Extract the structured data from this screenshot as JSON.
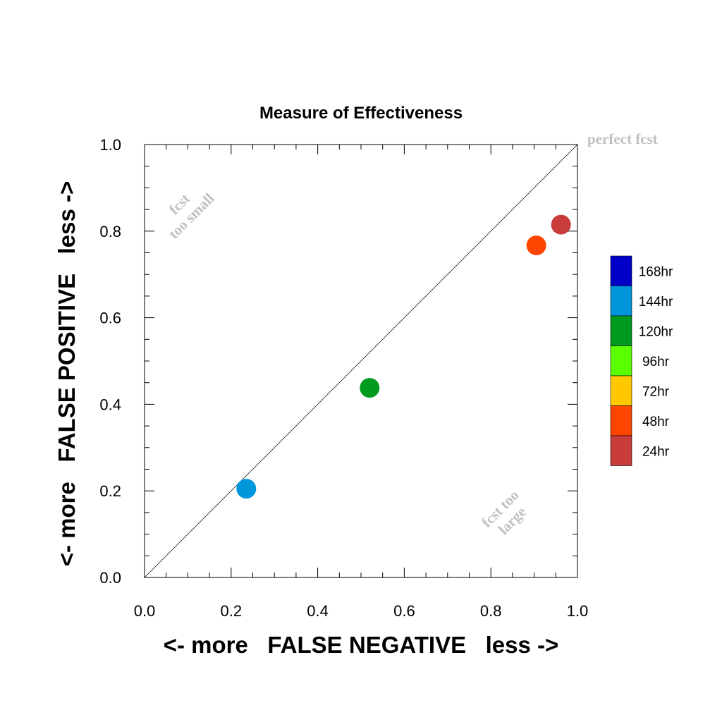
{
  "chart_data": {
    "type": "scatter",
    "title": "Measure of Effectiveness",
    "xlabel": "<- more   FALSE NEGATIVE   less ->",
    "ylabel": "<- more   FALSE POSITIVE   less ->",
    "xlim": [
      0.0,
      1.0
    ],
    "ylim": [
      0.0,
      1.0
    ],
    "x_ticks": [
      "0.0",
      "0.2",
      "0.4",
      "0.6",
      "0.8",
      "1.0"
    ],
    "y_ticks": [
      "0.0",
      "0.2",
      "0.4",
      "0.6",
      "0.8",
      "1.0"
    ],
    "diagonal_line": true,
    "grid": false,
    "annotations": {
      "perfect": "perfect fcst",
      "too_small": [
        "fcst",
        "too small"
      ],
      "too_large": [
        "fcst too",
        "large"
      ]
    },
    "legend": {
      "position": "right",
      "entries": [
        {
          "label": "168hr",
          "color": "#0000c8"
        },
        {
          "label": "144hr",
          "color": "#0096dc"
        },
        {
          "label": "120hr",
          "color": "#009a1e"
        },
        {
          "label": "96hr",
          "color": "#5aff00"
        },
        {
          "label": "72hr",
          "color": "#ffc800"
        },
        {
          "label": "48hr",
          "color": "#ff4600"
        },
        {
          "label": "24hr",
          "color": "#c83c3c"
        }
      ]
    },
    "points": [
      {
        "series": "144hr",
        "x": 0.235,
        "y": 0.205,
        "color": "#0096dc"
      },
      {
        "series": "120hr",
        "x": 0.52,
        "y": 0.438,
        "color": "#009a1e"
      },
      {
        "series": "48hr",
        "x": 0.905,
        "y": 0.767,
        "color": "#ff4600"
      },
      {
        "series": "24hr",
        "x": 0.962,
        "y": 0.815,
        "color": "#c83c3c"
      }
    ]
  }
}
